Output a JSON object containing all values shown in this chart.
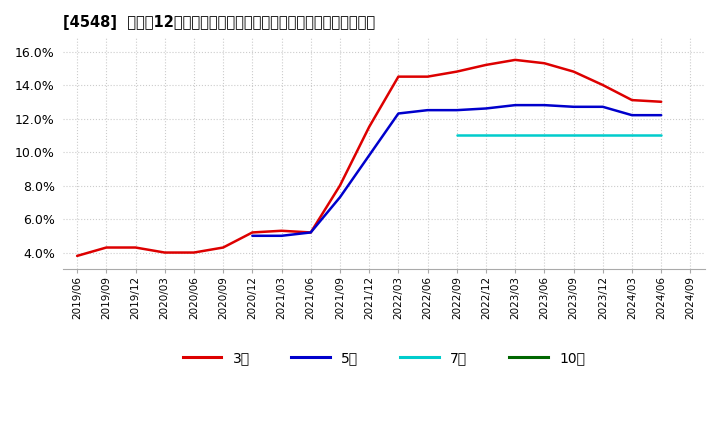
{
  "title": "[4548]  売上高12か月移動合計の対前年同期増減率の標準偏差の推移",
  "background_color": "#ffffff",
  "plot_bg_color": "#ffffff",
  "grid_color": "#cccccc",
  "ylim": [
    0.03,
    0.168
  ],
  "yticks": [
    0.04,
    0.06,
    0.08,
    0.1,
    0.12,
    0.14,
    0.16
  ],
  "ytick_labels": [
    "4.0%",
    "6.0%",
    "8.0%",
    "10.0%",
    "12.0%",
    "14.0%",
    "16.0%"
  ],
  "x_labels": [
    "2019/06",
    "2019/09",
    "2019/12",
    "2020/03",
    "2020/06",
    "2020/09",
    "2020/12",
    "2021/03",
    "2021/06",
    "2021/09",
    "2021/12",
    "2022/03",
    "2022/06",
    "2022/09",
    "2022/12",
    "2023/03",
    "2023/06",
    "2023/09",
    "2023/12",
    "2024/03",
    "2024/06",
    "2024/09"
  ],
  "series_order": [
    "3年",
    "5年",
    "7年",
    "10年"
  ],
  "series": {
    "3年": {
      "color": "#dd0000",
      "linewidth": 1.8,
      "data_x": [
        0,
        1,
        2,
        3,
        4,
        5,
        6,
        7,
        8,
        9,
        10,
        11,
        12,
        13,
        14,
        15,
        16,
        17,
        18,
        19,
        20
      ],
      "data_y": [
        0.038,
        0.043,
        0.043,
        0.04,
        0.04,
        0.043,
        0.052,
        0.053,
        0.052,
        0.08,
        0.115,
        0.145,
        0.145,
        0.148,
        0.152,
        0.155,
        0.153,
        0.148,
        0.14,
        0.131,
        0.13
      ]
    },
    "5年": {
      "color": "#0000cc",
      "linewidth": 1.8,
      "data_x": [
        6,
        7,
        8,
        9,
        10,
        11,
        12,
        13,
        14,
        15,
        16,
        17,
        18,
        19,
        20
      ],
      "data_y": [
        0.05,
        0.05,
        0.052,
        0.073,
        0.098,
        0.123,
        0.125,
        0.125,
        0.126,
        0.128,
        0.128,
        0.127,
        0.127,
        0.122,
        0.122
      ]
    },
    "7年": {
      "color": "#00cccc",
      "linewidth": 1.8,
      "data_x": [
        13,
        14,
        15,
        16,
        17,
        18,
        19,
        20
      ],
      "data_y": [
        0.11,
        0.11,
        0.11,
        0.11,
        0.11,
        0.11,
        0.11,
        0.11
      ]
    },
    "10年": {
      "color": "#006600",
      "linewidth": 1.8,
      "data_x": [],
      "data_y": []
    }
  },
  "legend_labels": [
    "3年",
    "5年",
    "7年",
    "10年"
  ],
  "legend_colors": [
    "#dd0000",
    "#0000cc",
    "#00cccc",
    "#006600"
  ]
}
